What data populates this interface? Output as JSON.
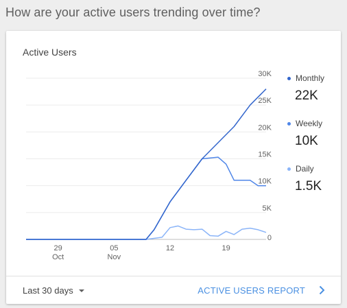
{
  "question": "How are your active users trending over time?",
  "card": {
    "title": "Active Users"
  },
  "legend": [
    {
      "label": "Monthly",
      "value": "22K",
      "color": "#3366cc"
    },
    {
      "label": "Weekly",
      "value": "10K",
      "color": "#4f86e8"
    },
    {
      "label": "Daily",
      "value": "1.5K",
      "color": "#8ab4f8"
    }
  ],
  "footer": {
    "range_label": "Last 30 days",
    "report_label": "ACTIVE USERS REPORT"
  },
  "chart_data": {
    "type": "line",
    "title": "Active Users",
    "x_ticks": [
      {
        "day": 29,
        "label": "29",
        "sublabel": "Oct"
      },
      {
        "day": 36,
        "label": "05",
        "sublabel": "Nov"
      },
      {
        "day": 43,
        "label": "12",
        "sublabel": ""
      },
      {
        "day": 50,
        "label": "19",
        "sublabel": ""
      }
    ],
    "y_ticks": [
      "0",
      "5K",
      "10K",
      "15K",
      "20K",
      "25K",
      "30K"
    ],
    "ylim": [
      0,
      30000
    ],
    "xlim": [
      25,
      55
    ],
    "grid": true,
    "legend_position": "right",
    "series": [
      {
        "name": "Monthly",
        "color": "#3366cc",
        "x": [
          25,
          30,
          35,
          40,
          41,
          43,
          45,
          47,
          49,
          51,
          53,
          55
        ],
        "y": [
          0,
          0,
          0,
          0,
          1800,
          7000,
          11000,
          15000,
          18000,
          21000,
          25000,
          28000
        ]
      },
      {
        "name": "Weekly",
        "color": "#4f86e8",
        "x": [
          25,
          30,
          35,
          40,
          41,
          43,
          45,
          47,
          49,
          50,
          51,
          52,
          53,
          54,
          55
        ],
        "y": [
          0,
          0,
          0,
          0,
          1800,
          7000,
          11000,
          15000,
          15300,
          14000,
          11000,
          11000,
          11000,
          10000,
          10000
        ]
      },
      {
        "name": "Daily",
        "color": "#8ab4f8",
        "x": [
          25,
          30,
          35,
          40,
          42,
          43,
          44,
          45,
          46,
          47,
          48,
          49,
          50,
          51,
          52,
          53,
          54,
          55
        ],
        "y": [
          0,
          0,
          0,
          0,
          400,
          2200,
          2500,
          1900,
          1800,
          1900,
          700,
          600,
          1500,
          900,
          1900,
          2100,
          1800,
          1300
        ]
      }
    ]
  }
}
